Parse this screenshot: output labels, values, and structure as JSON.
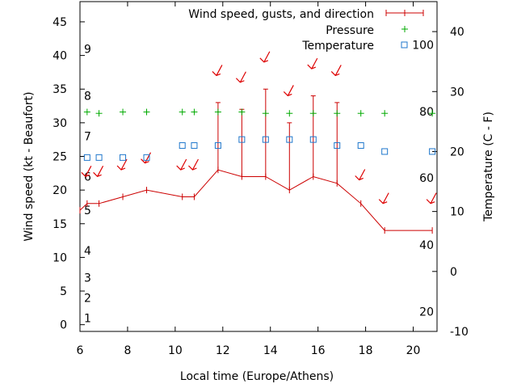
{
  "chart_data": {
    "type": "line",
    "xlabel": "Local time (Europe/Athens)",
    "ylabel_left": "Wind speed (kt - Beaufort)",
    "ylabel_right": "Temperature (C - F)",
    "xlim": [
      6,
      21
    ],
    "ylim_left": [
      -1,
      48
    ],
    "ylim_right": [
      -10,
      45
    ],
    "x_ticks": [
      6,
      8,
      10,
      12,
      14,
      16,
      18,
      20
    ],
    "y_ticks_left": [
      0,
      5,
      10,
      15,
      20,
      25,
      30,
      35,
      40,
      45
    ],
    "y_ticks_right": [
      -10,
      0,
      10,
      20,
      30,
      40
    ],
    "beaufort_labels": [
      {
        "label": "1",
        "kt": 1
      },
      {
        "label": "2",
        "kt": 4
      },
      {
        "label": "3",
        "kt": 7
      },
      {
        "label": "4",
        "kt": 11
      },
      {
        "label": "5",
        "kt": 17
      },
      {
        "label": "6",
        "kt": 22
      },
      {
        "label": "7",
        "kt": 28
      },
      {
        "label": "8",
        "kt": 34
      },
      {
        "label": "9",
        "kt": 41
      }
    ],
    "fahrenheit_labels": [
      {
        "label": "20",
        "celsius": -6.7
      },
      {
        "label": "40",
        "celsius": 4.4
      },
      {
        "label": "60",
        "celsius": 15.6
      },
      {
        "label": "80",
        "celsius": 26.7
      },
      {
        "label": "100",
        "celsius": 37.8
      }
    ],
    "legend": [
      {
        "label": "Wind speed, gusts, and direction",
        "color": "#cc0000"
      },
      {
        "label": "Pressure",
        "color": "#00aa00"
      },
      {
        "label": "Temperature",
        "color": "#1f77cc"
      }
    ],
    "legend_position": "top-right",
    "grid": false,
    "wind": {
      "color": "#cc0000",
      "x": [
        6.0,
        6.3,
        6.8,
        7.8,
        8.8,
        10.3,
        10.8,
        11.8,
        12.8,
        13.8,
        14.8,
        15.8,
        16.8,
        17.8,
        18.8,
        20.8
      ],
      "speed": [
        17,
        18,
        18,
        19,
        20,
        19,
        19,
        23,
        22,
        22,
        20,
        22,
        21,
        18,
        14,
        14
      ],
      "gust": [
        null,
        null,
        null,
        null,
        null,
        null,
        null,
        33,
        32,
        35,
        30,
        34,
        33,
        null,
        null,
        null
      ]
    },
    "wind_arrows": {
      "color": "#dd0000",
      "points": [
        {
          "x": 6.3,
          "kt": 22.5
        },
        {
          "x": 6.8,
          "kt": 22.5
        },
        {
          "x": 7.8,
          "kt": 23.5
        },
        {
          "x": 8.8,
          "kt": 24.5
        },
        {
          "x": 10.3,
          "kt": 23.5
        },
        {
          "x": 10.8,
          "kt": 23.5
        },
        {
          "x": 11.8,
          "kt": 37.5
        },
        {
          "x": 12.8,
          "kt": 36.5
        },
        {
          "x": 13.8,
          "kt": 39.5
        },
        {
          "x": 14.8,
          "kt": 34.5
        },
        {
          "x": 15.8,
          "kt": 38.5
        },
        {
          "x": 16.8,
          "kt": 37.5
        },
        {
          "x": 17.8,
          "kt": 22.0
        },
        {
          "x": 18.8,
          "kt": 18.5
        },
        {
          "x": 20.8,
          "kt": 18.5
        }
      ]
    },
    "pressure": {
      "color": "#00aa00",
      "x": [
        6.3,
        6.8,
        7.8,
        8.8,
        10.3,
        10.8,
        11.8,
        12.8,
        13.8,
        14.8,
        15.8,
        16.8,
        17.8,
        18.8,
        20.8
      ],
      "kt": [
        31.6,
        31.4,
        31.6,
        31.6,
        31.6,
        31.6,
        31.6,
        31.6,
        31.4,
        31.4,
        31.4,
        31.4,
        31.4,
        31.4,
        31.4
      ]
    },
    "temperature": {
      "color": "#1f77cc",
      "x": [
        6.3,
        6.8,
        7.8,
        8.8,
        10.3,
        10.8,
        11.8,
        12.8,
        13.8,
        14.8,
        15.8,
        16.8,
        17.8,
        18.8,
        20.8
      ],
      "celsius": [
        19,
        19,
        19,
        19,
        21,
        21,
        21,
        22,
        22,
        22,
        22,
        21,
        21,
        20,
        20
      ]
    }
  }
}
